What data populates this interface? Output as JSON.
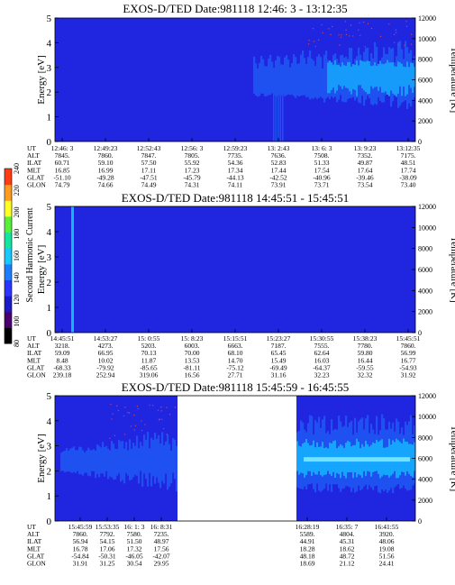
{
  "colorbar": {
    "label": "Second Harmonic Current",
    "ticks": [
      "80",
      "100",
      "120",
      "140",
      "160",
      "180",
      "200",
      "220",
      "240"
    ],
    "colors": [
      "#000000",
      "#4b0070",
      "#1a1ac8",
      "#2b35ff",
      "#1e7dff",
      "#18c8ff",
      "#14e6a0",
      "#58f03c",
      "#ffff28",
      "#ff9b1e",
      "#ff3c14"
    ]
  },
  "panel_colors": {
    "background": "#2026e0",
    "band": "#1f50f0",
    "core": "#14b4ff",
    "hot": "#c04070",
    "gap": "#ffffff"
  },
  "row_labels": [
    "UT",
    "ALT",
    "ILAT",
    "MLT",
    "GLAT",
    "GLON"
  ],
  "chart_data": [
    {
      "type": "heatmap",
      "title": "EXOS-D/TED   Date:981118   12:46: 3 - 13:12:35",
      "ylabel": "Energy [eV]",
      "y2label": "Temperature [K]",
      "ylim": [
        0,
        5
      ],
      "y2lim": [
        0,
        12000
      ],
      "yticks": [
        "0",
        "1",
        "2",
        "3",
        "4",
        "5"
      ],
      "y2ticks": [
        "0",
        "2000",
        "4000",
        "6000",
        "8000",
        "10000",
        "12000"
      ],
      "band_onset_fraction": 0.55,
      "band_energy_ev": [
        2.0,
        3.2
      ],
      "columns": [
        {
          "UT": "12:46: 3",
          "ALT": "7845.",
          "ILAT": "60.71",
          "MLT": "16.85",
          "GLAT": "-51.10",
          "GLON": "74.79"
        },
        {
          "UT": "12:49:23",
          "ALT": "7860.",
          "ILAT": "59.10",
          "MLT": "16.99",
          "GLAT": "-49.28",
          "GLON": "74.66"
        },
        {
          "UT": "12:52:43",
          "ALT": "7847.",
          "ILAT": "57.50",
          "MLT": "17.11",
          "GLAT": "-47.51",
          "GLON": "74.49"
        },
        {
          "UT": "12:56: 3",
          "ALT": "7805.",
          "ILAT": "55.92",
          "MLT": "17.23",
          "GLAT": "-45.79",
          "GLON": "74.31"
        },
        {
          "UT": "12:59:23",
          "ALT": "7735.",
          "ILAT": "54.36",
          "MLT": "17.34",
          "GLAT": "-44.13",
          "GLON": "74.11"
        },
        {
          "UT": "13: 2:43",
          "ALT": "7636.",
          "ILAT": "52.83",
          "MLT": "17.44",
          "GLAT": "-42.52",
          "GLON": "73.91"
        },
        {
          "UT": "13: 6: 3",
          "ALT": "7508.",
          "ILAT": "51.33",
          "MLT": "17.54",
          "GLAT": "-40.96",
          "GLON": "73.71"
        },
        {
          "UT": "13: 9:23",
          "ALT": "7352.",
          "ILAT": "49.87",
          "MLT": "17.64",
          "GLAT": "-39.46",
          "GLON": "73.54"
        },
        {
          "UT": "13:12:35",
          "ALT": "7175.",
          "ILAT": "48.51",
          "MLT": "17.74",
          "GLAT": "-38.09",
          "GLON": "73.40"
        }
      ]
    },
    {
      "type": "heatmap",
      "title": "EXOS-D/TED   Date:981118   14:45:51 - 15:45:51",
      "ylabel": "Energy [eV]",
      "y2label": "Temperature [K]",
      "ylim": [
        0,
        5
      ],
      "y2lim": [
        0,
        12000
      ],
      "yticks": [
        "0",
        "1",
        "2",
        "3",
        "4",
        "5"
      ],
      "y2ticks": [
        "0",
        "2000",
        "4000",
        "6000",
        "8000",
        "10000",
        "12000"
      ],
      "spike_fraction": 0.045,
      "columns": [
        {
          "UT": "14:45:51",
          "ALT": "3218.",
          "ILAT": "59.09",
          "MLT": "8.48",
          "GLAT": "-68.33",
          "GLON": "239.18"
        },
        {
          "UT": "14:53:27",
          "ALT": "4273.",
          "ILAT": "66.95",
          "MLT": "10.02",
          "GLAT": "-79.92",
          "GLON": "252.94"
        },
        {
          "UT": "15: 0:55",
          "ALT": "5203.",
          "ILAT": "70.13",
          "MLT": "11.87",
          "GLAT": "-85.65",
          "GLON": "319.06"
        },
        {
          "UT": "15: 8:23",
          "ALT": "6003.",
          "ILAT": "70.00",
          "MLT": "13.53",
          "GLAT": "-81.11",
          "GLON": "16.56"
        },
        {
          "UT": "15:15:51",
          "ALT": "6663.",
          "ILAT": "68.10",
          "MLT": "14.70",
          "GLAT": "-75.12",
          "GLON": "27.71"
        },
        {
          "UT": "15:23:27",
          "ALT": "7187.",
          "ILAT": "65.45",
          "MLT": "15.49",
          "GLAT": "-69.49",
          "GLON": "31.16"
        },
        {
          "UT": "15:30:55",
          "ALT": "7555.",
          "ILAT": "62.64",
          "MLT": "16.03",
          "GLAT": "-64.37",
          "GLON": "32.23"
        },
        {
          "UT": "15:38:23",
          "ALT": "7780.",
          "ILAT": "59.80",
          "MLT": "16.44",
          "GLAT": "-59.55",
          "GLON": "32.32"
        },
        {
          "UT": "15:45:51",
          "ALT": "7860.",
          "ILAT": "56.99",
          "MLT": "16.77",
          "GLAT": "-54.93",
          "GLON": "31.92"
        }
      ]
    },
    {
      "type": "heatmap",
      "title": "EXOS-D/TED   Date:981118   15:45:59 - 16:45:55",
      "ylabel": "Energy [eV]",
      "y2label": "Temperature [K]",
      "ylim": [
        0,
        5
      ],
      "y2lim": [
        0,
        12000
      ],
      "yticks": [
        "0",
        "1",
        "2",
        "3",
        "4",
        "5"
      ],
      "y2ticks": [
        "0",
        "2000",
        "4000",
        "6000",
        "8000",
        "10000",
        "12000"
      ],
      "gap_fraction": [
        0.34,
        0.67
      ],
      "band_energy_ev": [
        1.8,
        3.4
      ],
      "columns": [
        {
          "UT": "15:45:59",
          "ALT": "7860.",
          "ILAT": "56.94",
          "MLT": "16.78",
          "GLAT": "-54.84",
          "GLON": "31.91"
        },
        {
          "UT": "15:53:35",
          "ALT": "7792.",
          "ILAT": "54.15",
          "MLT": "17.06",
          "GLAT": "-50.31",
          "GLON": "31.25"
        },
        {
          "UT": "16: 1: 3",
          "ALT": "7580.",
          "ILAT": "51.50",
          "MLT": "17.32",
          "GLAT": "-46.05",
          "GLON": "30.54"
        },
        {
          "UT": "16: 8:31",
          "ALT": "7235.",
          "ILAT": "48.97",
          "MLT": "17.56",
          "GLAT": "-42.07",
          "GLON": "29.95"
        },
        {
          "UT": "16:28:19",
          "ALT": "5589.",
          "ILAT": "44.91",
          "MLT": "18.28",
          "GLAT": "48.18",
          "GLON": "18.69"
        },
        {
          "UT": "16:35: 7",
          "ALT": "4804.",
          "ILAT": "45.31",
          "MLT": "18.62",
          "GLAT": "48.72",
          "GLON": "21.12"
        },
        {
          "UT": "16:41:55",
          "ALT": "3920.",
          "ILAT": "48.06",
          "MLT": "19.08",
          "GLAT": "51.56",
          "GLON": "24.41"
        }
      ]
    }
  ]
}
